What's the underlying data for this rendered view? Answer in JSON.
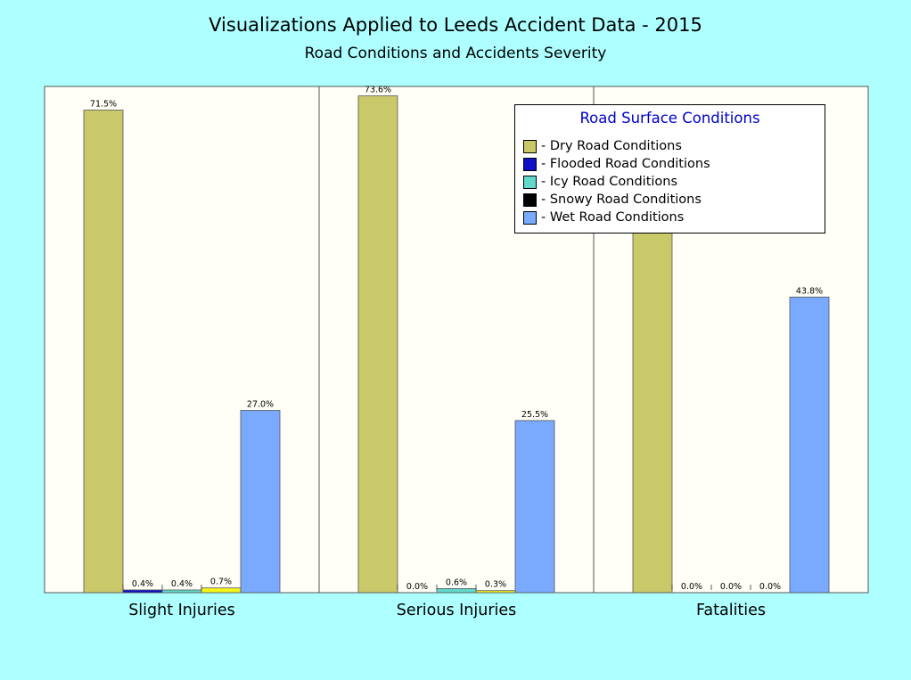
{
  "title": "Visualizations Applied to Leeds Accident Data - 2015",
  "subtitle": "Road Conditions and Accidents Severity",
  "legend": {
    "title": "Road Surface Conditions",
    "items": [
      {
        "label": "- Dry Road Conditions",
        "color": "#c9c96a"
      },
      {
        "label": "- Flooded Road Conditions",
        "color": "#1010c8"
      },
      {
        "label": "- Icy Road Conditions",
        "color": "#62d8cc"
      },
      {
        "label": "- Snowy Road Conditions",
        "color": "#000000"
      },
      {
        "label": "- Wet Road Conditions",
        "color": "#7aaaff"
      }
    ]
  },
  "chart_data": {
    "type": "bar",
    "title": "Visualizations Applied to Leeds Accident Data - 2015",
    "subtitle": "Road Conditions and Accidents Severity",
    "categories": [
      "Slight Injuries",
      "Serious Injuries",
      "Fatalities"
    ],
    "ylim": [
      0,
      75
    ],
    "grid": false,
    "legend_position": "top-right",
    "series": [
      {
        "name": "Dry Road Conditions",
        "color": "#c9c96a",
        "values": [
          71.5,
          73.6,
          56.3
        ],
        "labels": [
          "71.5%",
          "73.6%",
          "56.3%"
        ]
      },
      {
        "name": "Flooded Road Conditions",
        "color": "#1010c8",
        "values": [
          0.4,
          0.0,
          0.0
        ],
        "labels": [
          "0.4%",
          "0.0%",
          "0.0%"
        ]
      },
      {
        "name": "Icy Road Conditions",
        "color": "#62d8cc",
        "values": [
          0.4,
          0.6,
          0.0
        ],
        "labels": [
          "0.4%",
          "0.6%",
          "0.0%"
        ]
      },
      {
        "name": "Snowy Road Conditions",
        "color": "#f5f516",
        "values": [
          0.7,
          0.3,
          0.0
        ],
        "labels": [
          "0.7%",
          "0.3%",
          "0.0%"
        ]
      },
      {
        "name": "Wet Road Conditions",
        "color": "#7aaaff",
        "values": [
          27.0,
          25.5,
          43.8
        ],
        "labels": [
          "27.0%",
          "25.5%",
          "43.8%"
        ]
      }
    ]
  }
}
